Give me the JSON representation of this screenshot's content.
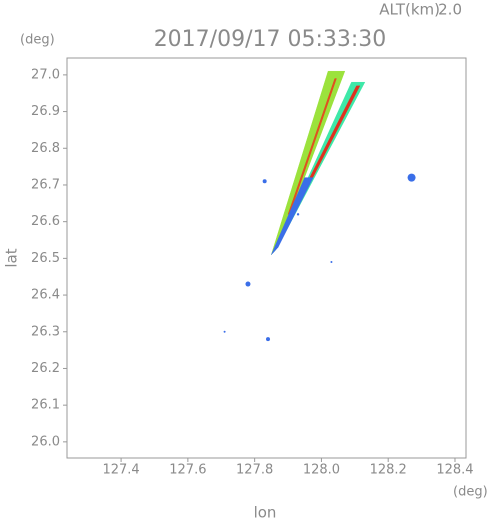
{
  "chart_data": {
    "type": "radar",
    "title": "2017/09/17 05:33:30",
    "altitude_label": "ALT(km)",
    "altitude": "2.0",
    "y_unit": "(deg)",
    "x_unit": "(deg)",
    "x_label": "lon",
    "y_label": "lat",
    "xlim": [
      127.238,
      128.433
    ],
    "ylim": [
      25.956,
      27.046
    ],
    "xticks": [
      127.4,
      127.6,
      127.8,
      {
        "value": 128,
        "label": "128.0"
      },
      128.2,
      128.4
    ],
    "yticks": [
      {
        "value": 26,
        "label": "26.0"
      },
      26.1,
      26.2,
      26.3,
      26.4,
      26.5,
      26.6,
      26.7,
      26.8,
      26.9,
      {
        "value": 27,
        "label": "27.0"
      }
    ],
    "series": [
      {
        "color": "#9be23c",
        "x": [
          127.85,
          128.02,
          128.07,
          127.87
        ],
        "y": [
          26.51,
          27.01,
          27.01,
          26.53
        ]
      },
      {
        "color": "#3ee8a8",
        "x": [
          127.86,
          128.09,
          128.13,
          127.88
        ],
        "y": [
          26.52,
          26.98,
          26.98,
          26.55
        ]
      },
      {
        "color": "#e03020",
        "x": [
          127.87,
          128.105,
          128.115,
          127.878
        ],
        "y": [
          26.55,
          26.97,
          26.97,
          26.55
        ]
      },
      {
        "color": "#e05020",
        "x": [
          127.9,
          128.04,
          128.045,
          127.905
        ],
        "y": [
          26.62,
          26.99,
          26.99,
          26.62
        ]
      },
      {
        "color": "#3a6ee8",
        "x": [
          127.85,
          127.95,
          127.975,
          127.87
        ],
        "y": [
          26.51,
          26.72,
          26.72,
          26.53
        ]
      }
    ],
    "points": {
      "color": "#3a6ee8",
      "x": [
        128.27,
        127.83,
        127.78,
        127.84,
        128.03,
        127.71,
        127.93
      ],
      "y": [
        26.72,
        26.71,
        26.43,
        26.28,
        26.49,
        26.3,
        26.62
      ],
      "size": [
        4,
        2,
        2.5,
        2,
        1,
        1,
        1.2
      ]
    }
  }
}
